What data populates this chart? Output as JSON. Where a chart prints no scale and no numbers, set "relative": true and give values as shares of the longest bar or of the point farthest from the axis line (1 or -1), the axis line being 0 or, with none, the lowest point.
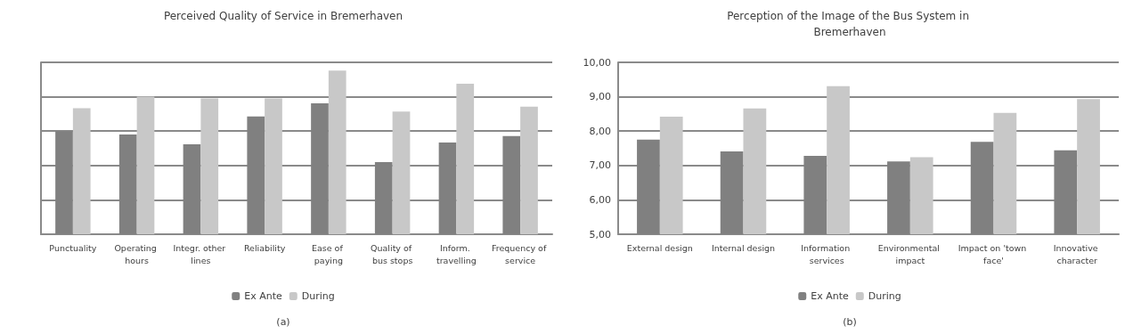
{
  "chart_data": [
    {
      "type": "bar",
      "title": "Perceived Quality of Service in Bremerhaven",
      "categories": [
        "Punctuality",
        "Operating hours",
        "Integr. other lines",
        "Reliability",
        "Ease of paying",
        "Quality of bus stops",
        "Inform. travelling",
        "Frequency of service"
      ],
      "relative": true,
      "series": [
        {
          "name": "Ex Ante",
          "color": "#808080",
          "values": [
            0.63,
            0.61,
            0.55,
            0.72,
            0.8,
            0.44,
            0.56,
            0.6
          ]
        },
        {
          "name": "During",
          "color": "#c8c8c8",
          "values": [
            0.77,
            0.84,
            0.83,
            0.83,
            1,
            0.75,
            0.92,
            0.78
          ]
        }
      ],
      "grid": "y",
      "legend": "bottom",
      "annotations": [
        "(a)"
      ]
    },
    {
      "type": "bar",
      "title": "Perception of the Image of the Bus System in Bremerhaven",
      "categories": [
        "External design",
        "Internal design",
        "Information services",
        "Environmental impact",
        "Impact on 'town face'",
        "Innovative character"
      ],
      "series": [
        {
          "name": "Ex Ante",
          "color": "#808080",
          "values": [
            7.75,
            7.41,
            7.28,
            7.12,
            7.69,
            7.44
          ]
        },
        {
          "name": "During",
          "color": "#c8c8c8",
          "values": [
            8.42,
            8.66,
            9.31,
            7.24,
            8.53,
            8.93
          ]
        }
      ],
      "ylim": [
        5,
        10
      ],
      "yticks": [
        {
          "value": 5,
          "label": "5,00"
        },
        {
          "value": 6,
          "label": "6,00"
        },
        {
          "value": 7,
          "label": "7,00"
        },
        {
          "value": 8,
          "label": "8,00"
        },
        {
          "value": 9,
          "label": "9,00"
        },
        {
          "value": 10,
          "label": "10,00"
        }
      ],
      "grid": "y",
      "legend": "bottom",
      "annotations": [
        "(b)"
      ]
    }
  ]
}
